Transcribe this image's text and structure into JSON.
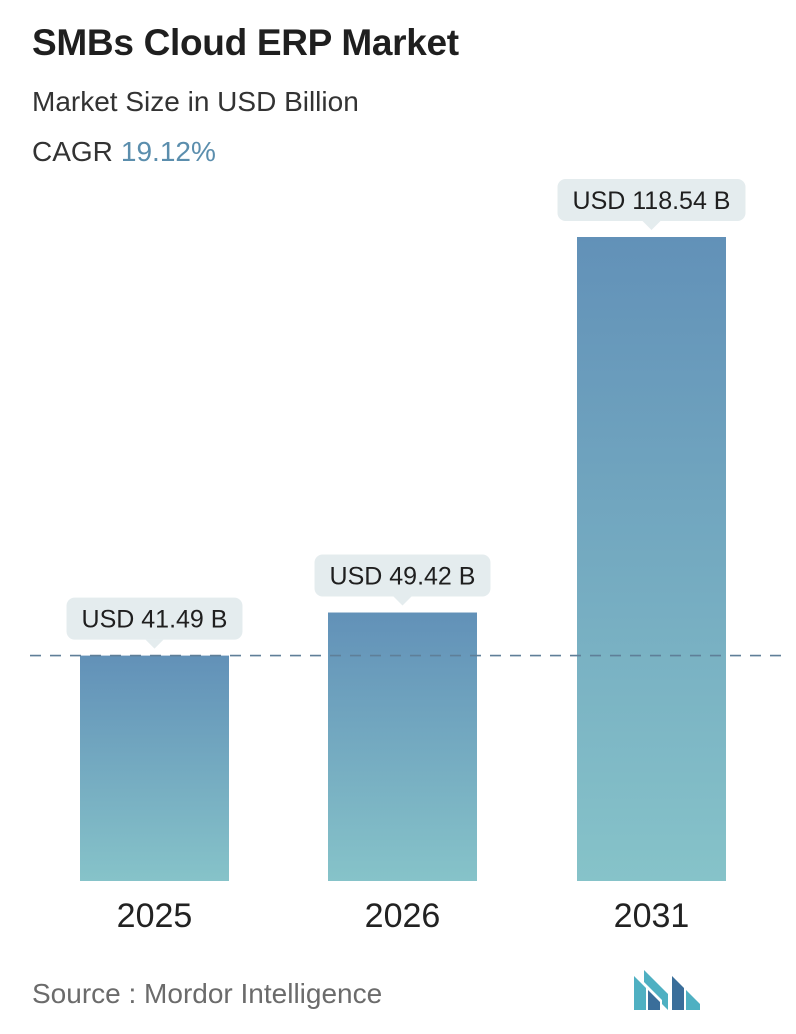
{
  "header": {
    "title": "SMBs Cloud ERP Market",
    "subtitle": "Market Size in USD Billion",
    "cagr_label": "CAGR",
    "cagr_value": "19.12%"
  },
  "colors": {
    "bar_top": "#6291b8",
    "bar_bottom": "#86c3c9",
    "callout_bg": "#e4ecee",
    "cagr_value": "#5b8ead",
    "reference_line": "#5f7f98",
    "logo_teal": "#4fb0c2",
    "logo_blue": "#3a6e9a"
  },
  "chart_data": {
    "type": "bar",
    "categories": [
      "2025",
      "2026",
      "2031"
    ],
    "values": [
      41.49,
      49.42,
      118.54
    ],
    "data_labels": [
      "USD 41.49 B",
      "USD 49.42 B",
      "USD 118.54 B"
    ],
    "title": "SMBs Cloud ERP Market",
    "subtitle": "Market Size in USD Billion",
    "ylim": [
      0,
      118.54
    ],
    "reference_line_value": 41.49,
    "grid": false
  },
  "footer": {
    "source": "Source :  Mordor Intelligence",
    "logo_icon": "mordor-intelligence-logo"
  }
}
